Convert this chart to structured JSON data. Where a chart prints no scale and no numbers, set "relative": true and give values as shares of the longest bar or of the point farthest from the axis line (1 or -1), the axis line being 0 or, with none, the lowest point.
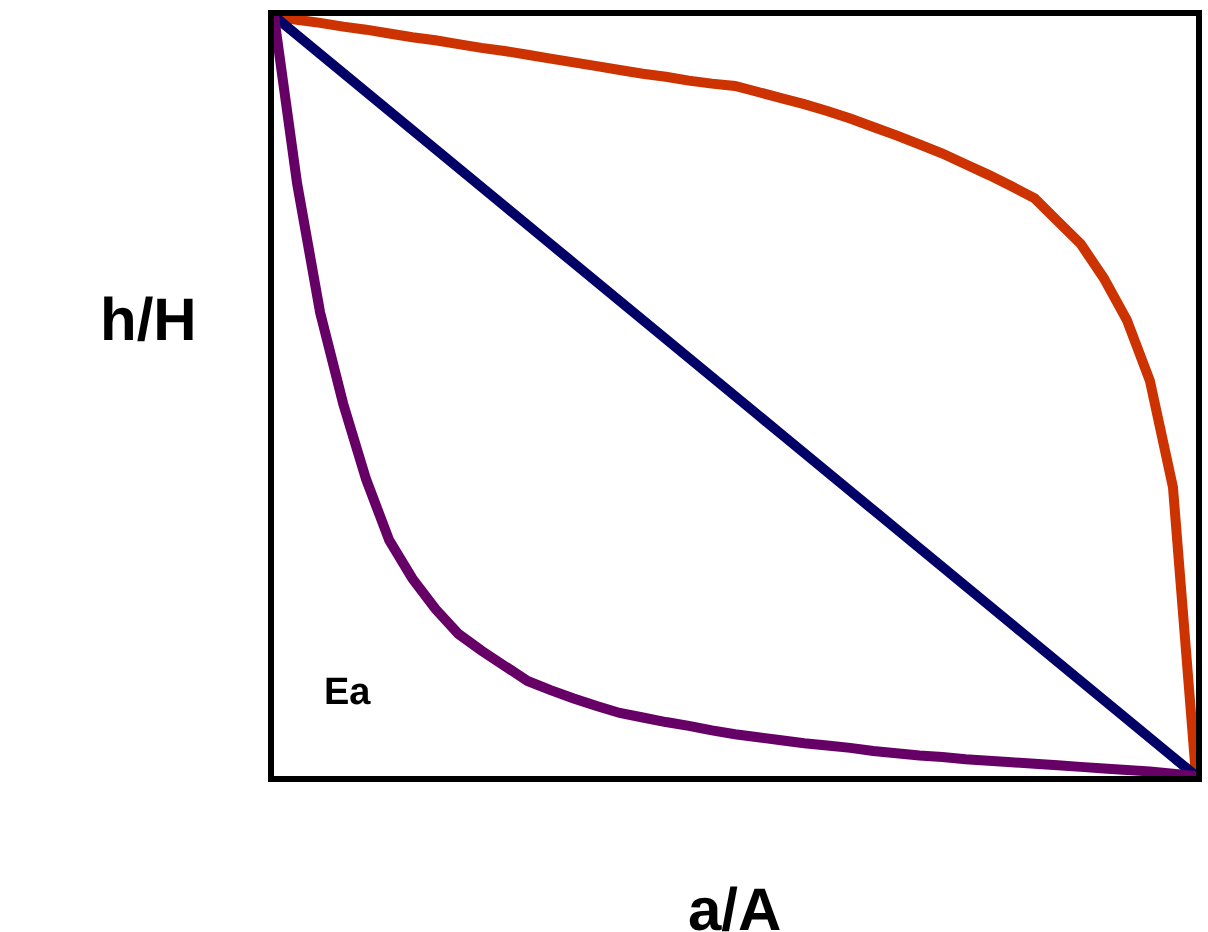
{
  "chart_data": {
    "type": "line",
    "relative": true,
    "xlabel": "a/A",
    "ylabel": "h/H",
    "annotations": [
      "Ea"
    ],
    "marker": "none",
    "line_style": "solid",
    "categories": [
      null,
      null,
      null,
      null,
      null,
      null,
      null,
      null,
      null,
      null,
      null,
      null,
      null,
      null,
      null,
      null,
      null,
      null,
      null,
      null,
      null,
      null,
      null,
      null,
      null,
      null,
      null,
      null,
      null,
      null,
      null,
      null,
      null,
      null,
      null,
      null,
      null,
      null,
      null,
      null,
      null
    ],
    "series": [
      {
        "color": "#cc3300",
        "values": [
          1,
          0.995,
          0.991,
          0.986,
          0.982,
          0.977,
          0.972,
          0.968,
          0.963,
          0.958,
          0.954,
          0.949,
          0.944,
          0.939,
          0.934,
          0.929,
          0.924,
          0.92,
          0.915,
          0.911,
          0.908,
          0.9,
          0.892,
          0.884,
          0.875,
          0.865,
          0.854,
          0.843,
          0.831,
          0.819,
          0.805,
          0.791,
          0.776,
          0.76,
          0.73,
          0.7,
          0.655,
          0.6,
          0.52,
          0.38,
          0
        ]
      },
      {
        "color": "#000066",
        "values": [
          1,
          0.975,
          0.95,
          0.925,
          0.9,
          0.875,
          0.85,
          0.825,
          0.8,
          0.775,
          0.75,
          0.725,
          0.7,
          0.675,
          0.65,
          0.625,
          0.6,
          0.575,
          0.55,
          0.525,
          0.5,
          0.475,
          0.45,
          0.425,
          0.4,
          0.375,
          0.35,
          0.325,
          0.3,
          0.275,
          0.25,
          0.225,
          0.2,
          0.175,
          0.15,
          0.125,
          0.1,
          0.075,
          0.05,
          0.025,
          0
        ]
      },
      {
        "color": "#660066",
        "values": [
          1,
          0.78,
          0.61,
          0.49,
          0.39,
          0.31,
          0.26,
          0.22,
          0.187,
          0.165,
          0.145,
          0.125,
          0.113,
          0.102,
          0.092,
          0.083,
          0.077,
          0.071,
          0.066,
          0.06,
          0.055,
          0.051,
          0.047,
          0.043,
          0.04,
          0.037,
          0.033,
          0.03,
          0.027,
          0.025,
          0.022,
          0.02,
          0.018,
          0.016,
          0.014,
          0.012,
          0.01,
          0.008,
          0.006,
          0.003,
          0
        ]
      }
    ]
  }
}
